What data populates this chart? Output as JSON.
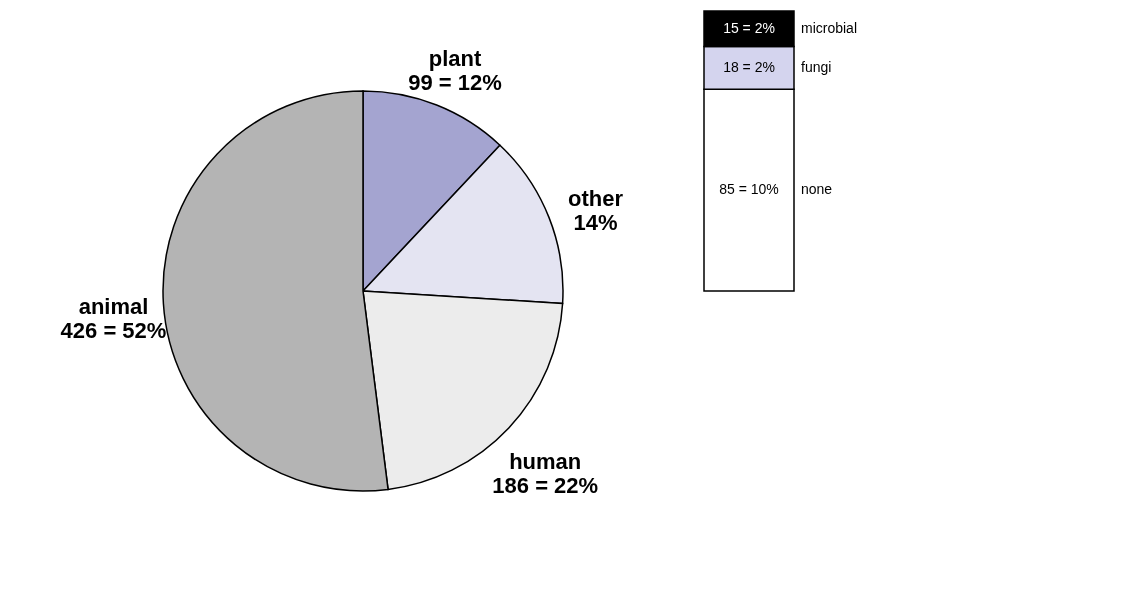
{
  "chart_data": [
    {
      "type": "pie",
      "categories": [
        "plant",
        "other",
        "human",
        "animal"
      ],
      "values": [
        12,
        14,
        22,
        52
      ],
      "value_labels": [
        "99 = 12%",
        "14%",
        "186 = 22%",
        "426 = 52%"
      ],
      "colors": [
        "#a4a4d0",
        "#e4e4f2",
        "#ececec",
        "#b4b4b4"
      ]
    },
    {
      "type": "bar",
      "stacked": true,
      "categories": [
        null
      ],
      "series": [
        {
          "name": "none",
          "color": "#ffffff",
          "values": [
            85
          ],
          "value_labels": [
            "85 = 10%"
          ]
        },
        {
          "name": "fungi",
          "color": "#d4d4ee",
          "values": [
            18
          ],
          "value_labels": [
            "18 = 2%"
          ]
        },
        {
          "name": "microbial",
          "color": "#000000",
          "values": [
            15
          ],
          "value_labels": [
            "15 = 2%"
          ]
        }
      ]
    }
  ]
}
